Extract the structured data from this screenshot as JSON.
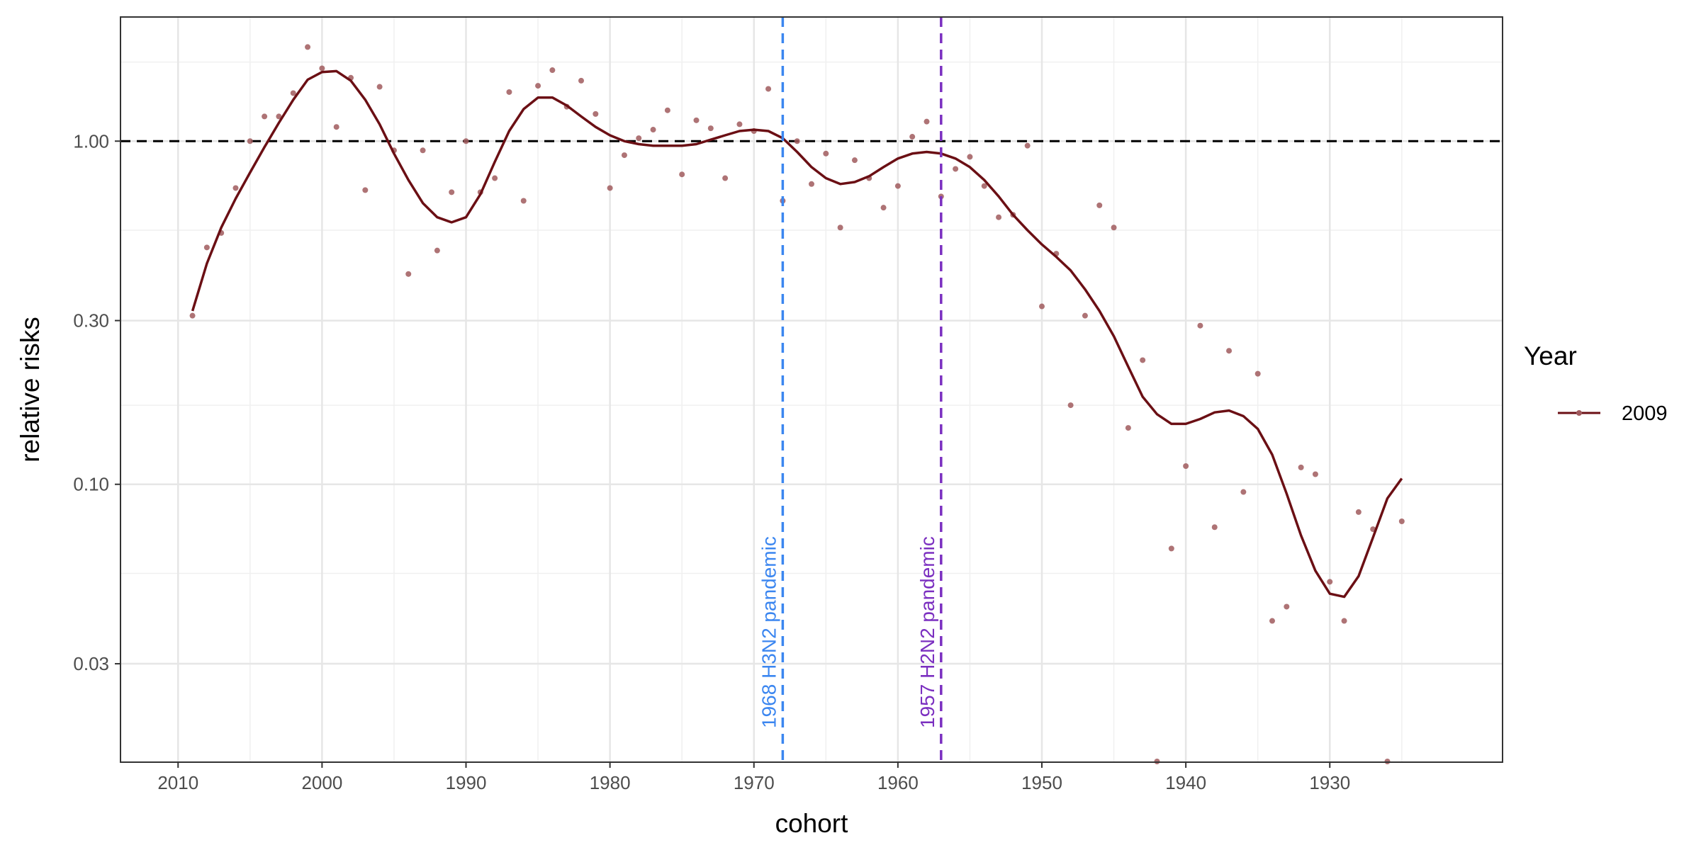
{
  "chart_data": {
    "type": "line",
    "title": "",
    "xlabel": "cohort",
    "ylabel": "relative risks",
    "x_reversed": true,
    "xlim": [
      1918,
      2014
    ],
    "y_scale": "log",
    "ylim": [
      0.0155,
      2.3
    ],
    "x_ticks": [
      2010,
      2000,
      1990,
      1980,
      1970,
      1960,
      1950,
      1940,
      1930
    ],
    "x_tick_labels": [
      "2010",
      "2000",
      "1990",
      "1980",
      "1970",
      "1960",
      "1950",
      "1940",
      "1930"
    ],
    "y_ticks": [
      0.03,
      0.1,
      0.3,
      1.0
    ],
    "y_tick_labels": [
      "0.03",
      "0.10",
      "0.30",
      "1.00"
    ],
    "y_minor_ticks": [
      0.055,
      0.17,
      0.55,
      1.7
    ],
    "grid": true,
    "legend": {
      "title": "Year",
      "position": "right",
      "entries": [
        "2009"
      ]
    },
    "colors": {
      "series": "#6b0f14",
      "points": "#a05a5d",
      "h3n2": "#3b86f0",
      "h2n2": "#7b2fc0",
      "reference": "#000000"
    },
    "reference_line": {
      "y": 1.0,
      "style": "dashed"
    },
    "annotations": [
      {
        "x": 1968,
        "label": "1968 H3N2 pandemic",
        "color": "#3b86f0"
      },
      {
        "x": 1957,
        "label": "1957 H2N2 pandemic",
        "color": "#7b2fc0"
      }
    ],
    "series": [
      {
        "name": "2009",
        "points": [
          [
            2009,
            0.31
          ],
          [
            2008,
            0.49
          ],
          [
            2007,
            0.54
          ],
          [
            2006,
            0.73
          ],
          [
            2005,
            1.0
          ],
          [
            2004,
            1.18
          ],
          [
            2003,
            1.18
          ],
          [
            2002,
            1.38
          ],
          [
            2001,
            1.88
          ],
          [
            2000,
            1.63
          ],
          [
            1999,
            1.1
          ],
          [
            1998,
            1.53
          ],
          [
            1997,
            0.72
          ],
          [
            1996,
            1.44
          ],
          [
            1995,
            0.94
          ],
          [
            1994,
            0.41
          ],
          [
            1993,
            0.94
          ],
          [
            1992,
            0.48
          ],
          [
            1991,
            0.71
          ],
          [
            1990,
            1.0
          ],
          [
            1989,
            0.71
          ],
          [
            1988,
            0.78
          ],
          [
            1987,
            1.39
          ],
          [
            1986,
            0.67
          ],
          [
            1985,
            1.45
          ],
          [
            1984,
            1.61
          ],
          [
            1983,
            1.26
          ],
          [
            1982,
            1.5
          ],
          [
            1981,
            1.2
          ],
          [
            1980,
            0.73
          ],
          [
            1979,
            0.91
          ],
          [
            1978,
            1.02
          ],
          [
            1977,
            1.08
          ],
          [
            1976,
            1.23
          ],
          [
            1975,
            0.8
          ],
          [
            1974,
            1.15
          ],
          [
            1973,
            1.09
          ],
          [
            1972,
            0.78
          ],
          [
            1971,
            1.12
          ],
          [
            1970,
            1.07
          ],
          [
            1969,
            1.42
          ],
          [
            1968,
            0.67
          ],
          [
            1967,
            1.0
          ],
          [
            1966,
            0.75
          ],
          [
            1965,
            0.92
          ],
          [
            1964,
            0.56
          ],
          [
            1963,
            0.88
          ],
          [
            1962,
            0.78
          ],
          [
            1961,
            0.64
          ],
          [
            1960,
            0.74
          ],
          [
            1959,
            1.03
          ],
          [
            1958,
            1.14
          ],
          [
            1957,
            0.69
          ],
          [
            1956,
            0.83
          ],
          [
            1955,
            0.9
          ],
          [
            1954,
            0.74
          ],
          [
            1953,
            0.6
          ],
          [
            1952,
            0.61
          ],
          [
            1951,
            0.97
          ],
          [
            1950,
            0.33
          ],
          [
            1949,
            0.47
          ],
          [
            1948,
            0.17
          ],
          [
            1947,
            0.31
          ],
          [
            1946,
            0.65
          ],
          [
            1945,
            0.56
          ],
          [
            1944,
            0.146
          ],
          [
            1943,
            0.23
          ],
          [
            1942,
            0.0155
          ],
          [
            1941,
            0.065
          ],
          [
            1940,
            0.113
          ],
          [
            1939,
            0.29
          ],
          [
            1938,
            0.075
          ],
          [
            1937,
            0.245
          ],
          [
            1936,
            0.095
          ],
          [
            1935,
            0.21
          ],
          [
            1934,
            0.04
          ],
          [
            1933,
            0.044
          ],
          [
            1932,
            0.112
          ],
          [
            1931,
            0.107
          ],
          [
            1930,
            0.052
          ],
          [
            1929,
            0.04
          ],
          [
            1928,
            0.083
          ],
          [
            1927,
            0.074
          ],
          [
            1926,
            0.0155
          ],
          [
            1925,
            0.078
          ]
        ],
        "fitted": [
          [
            2009,
            0.32
          ],
          [
            2008,
            0.44
          ],
          [
            2007,
            0.56
          ],
          [
            2006,
            0.68
          ],
          [
            2005,
            0.81
          ],
          [
            2004,
            0.96
          ],
          [
            2003,
            1.13
          ],
          [
            2002,
            1.32
          ],
          [
            2001,
            1.51
          ],
          [
            2000,
            1.59
          ],
          [
            1999,
            1.6
          ],
          [
            1998,
            1.5
          ],
          [
            1997,
            1.32
          ],
          [
            1996,
            1.12
          ],
          [
            1995,
            0.92
          ],
          [
            1994,
            0.77
          ],
          [
            1993,
            0.66
          ],
          [
            1992,
            0.6
          ],
          [
            1991,
            0.58
          ],
          [
            1990,
            0.6
          ],
          [
            1989,
            0.7
          ],
          [
            1988,
            0.87
          ],
          [
            1987,
            1.07
          ],
          [
            1986,
            1.24
          ],
          [
            1985,
            1.34
          ],
          [
            1984,
            1.34
          ],
          [
            1983,
            1.27
          ],
          [
            1982,
            1.18
          ],
          [
            1981,
            1.1
          ],
          [
            1980,
            1.04
          ],
          [
            1979,
            1.0
          ],
          [
            1978,
            0.98
          ],
          [
            1977,
            0.97
          ],
          [
            1976,
            0.97
          ],
          [
            1975,
            0.97
          ],
          [
            1974,
            0.98
          ],
          [
            1973,
            1.01
          ],
          [
            1972,
            1.04
          ],
          [
            1971,
            1.07
          ],
          [
            1970,
            1.08
          ],
          [
            1969,
            1.07
          ],
          [
            1968,
            1.02
          ],
          [
            1967,
            0.93
          ],
          [
            1966,
            0.84
          ],
          [
            1965,
            0.78
          ],
          [
            1964,
            0.75
          ],
          [
            1963,
            0.76
          ],
          [
            1962,
            0.79
          ],
          [
            1961,
            0.84
          ],
          [
            1960,
            0.89
          ],
          [
            1959,
            0.92
          ],
          [
            1958,
            0.93
          ],
          [
            1957,
            0.92
          ],
          [
            1956,
            0.89
          ],
          [
            1955,
            0.84
          ],
          [
            1954,
            0.77
          ],
          [
            1953,
            0.69
          ],
          [
            1952,
            0.61
          ],
          [
            1951,
            0.55
          ],
          [
            1950,
            0.5
          ],
          [
            1949,
            0.46
          ],
          [
            1948,
            0.42
          ],
          [
            1947,
            0.37
          ],
          [
            1946,
            0.32
          ],
          [
            1945,
            0.27
          ],
          [
            1944,
            0.22
          ],
          [
            1943,
            0.18
          ],
          [
            1942,
            0.16
          ],
          [
            1941,
            0.15
          ],
          [
            1940,
            0.15
          ],
          [
            1939,
            0.155
          ],
          [
            1938,
            0.162
          ],
          [
            1937,
            0.164
          ],
          [
            1936,
            0.158
          ],
          [
            1935,
            0.145
          ],
          [
            1934,
            0.122
          ],
          [
            1933,
            0.094
          ],
          [
            1932,
            0.071
          ],
          [
            1931,
            0.056
          ],
          [
            1930,
            0.048
          ],
          [
            1929,
            0.047
          ],
          [
            1928,
            0.054
          ],
          [
            1927,
            0.07
          ],
          [
            1926,
            0.091
          ],
          [
            1925,
            0.104
          ]
        ]
      }
    ]
  }
}
